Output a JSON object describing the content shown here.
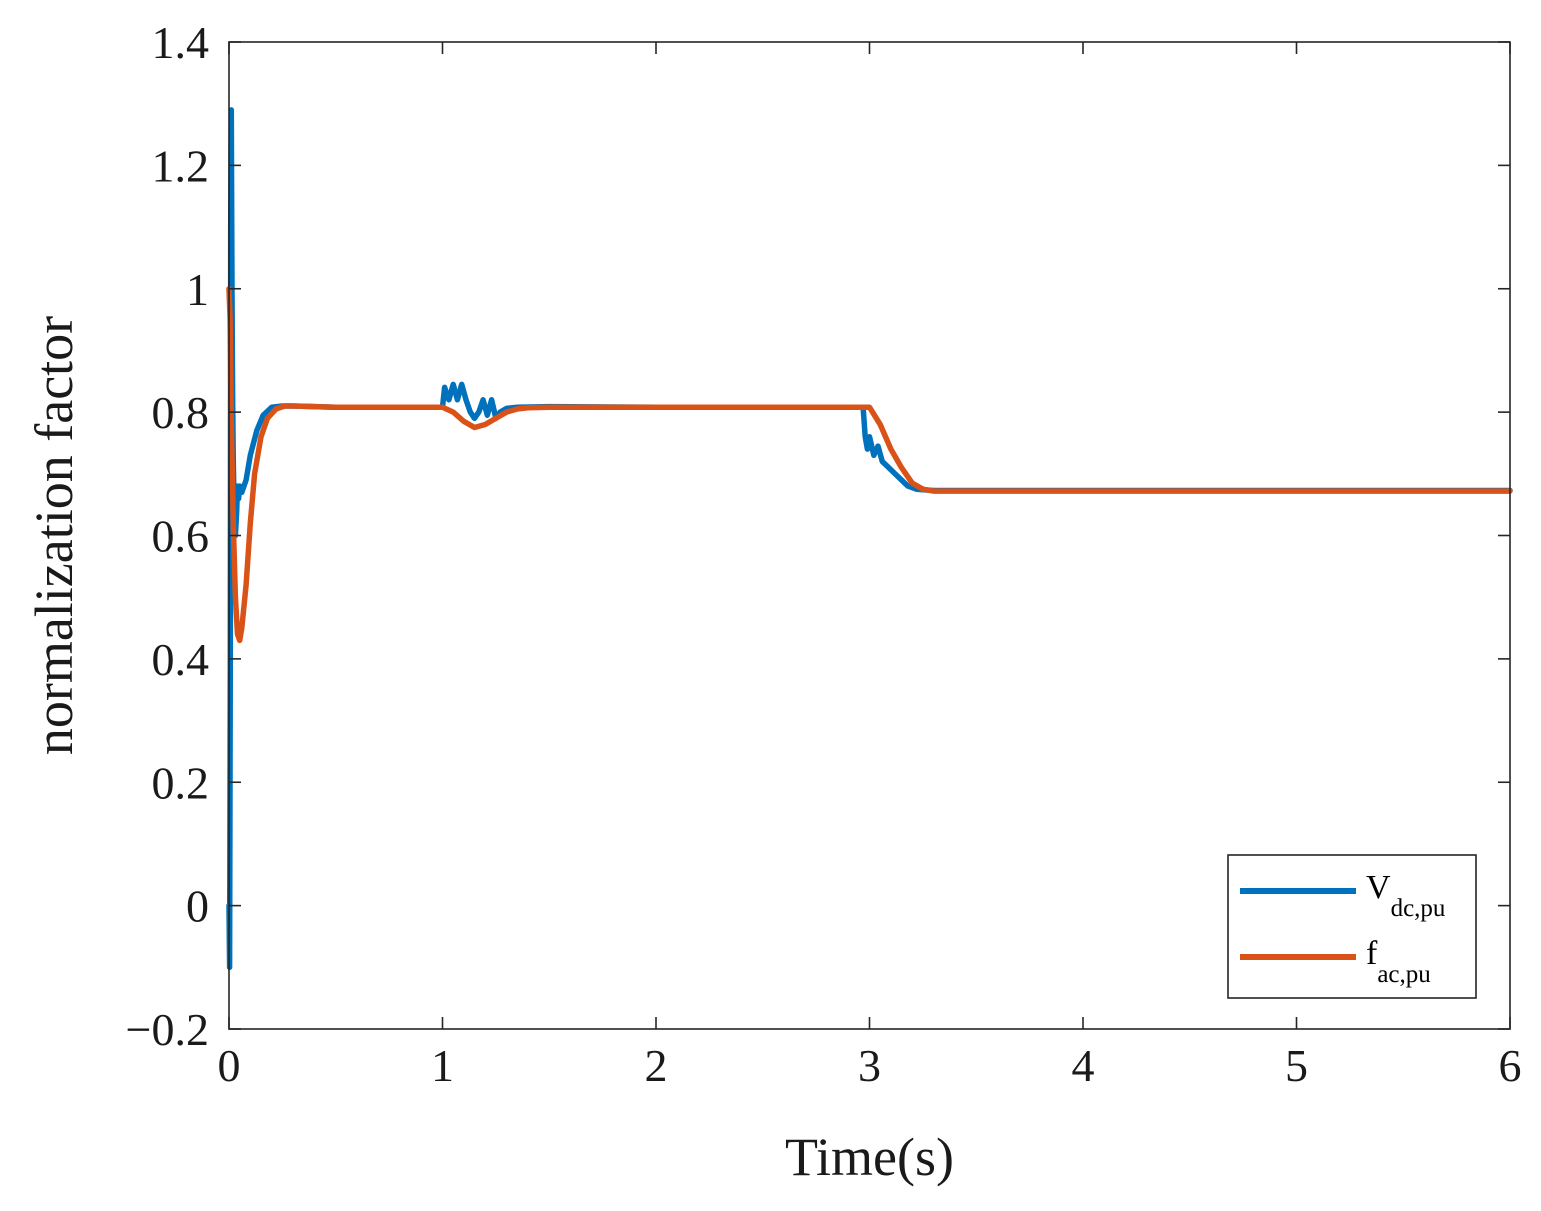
{
  "chart_data": {
    "type": "line",
    "title": "",
    "xlabel": "Time(s)",
    "ylabel": "normalization factor",
    "xlim": [
      0,
      6
    ],
    "ylim": [
      -0.2,
      1.4
    ],
    "xticks": [
      0,
      1,
      2,
      3,
      4,
      5,
      6
    ],
    "xtick_labels": [
      "0",
      "1",
      "2",
      "3",
      "4",
      "5",
      "6"
    ],
    "yticks": [
      -0.2,
      0,
      0.2,
      0.4,
      0.6,
      0.8,
      1,
      1.2,
      1.4
    ],
    "ytick_labels": [
      "−0.2",
      "0",
      "0.2",
      "0.4",
      "0.6",
      "0.8",
      "1",
      "1.2",
      "1.4"
    ],
    "grid": false,
    "legend_position": "bottom-right",
    "series": [
      {
        "name": "V",
        "subscript": "dc,pu",
        "color": "#0072BD",
        "x": [
          0,
          0.003,
          0.006,
          0.008,
          0.011,
          0.014,
          0.017,
          0.02,
          0.024,
          0.03,
          0.036,
          0.04,
          0.045,
          0.05,
          0.06,
          0.08,
          0.1,
          0.13,
          0.16,
          0.2,
          0.25,
          0.3,
          0.5,
          0.8,
          1.0,
          1.01,
          1.03,
          1.05,
          1.07,
          1.09,
          1.11,
          1.13,
          1.15,
          1.17,
          1.19,
          1.21,
          1.23,
          1.25,
          1.27,
          1.3,
          1.35,
          1.5,
          2.0,
          2.5,
          2.97,
          2.98,
          2.99,
          3.0,
          3.02,
          3.04,
          3.06,
          3.09,
          3.12,
          3.15,
          3.18,
          3.22,
          3.3,
          3.5,
          4.0,
          5.0,
          6.0
        ],
        "y": [
          0.0,
          -0.1,
          0.4,
          1.1,
          1.29,
          1.0,
          0.83,
          0.72,
          0.65,
          0.6,
          0.64,
          0.68,
          0.66,
          0.68,
          0.67,
          0.69,
          0.73,
          0.77,
          0.795,
          0.808,
          0.81,
          0.81,
          0.808,
          0.808,
          0.808,
          0.84,
          0.82,
          0.845,
          0.82,
          0.845,
          0.82,
          0.8,
          0.79,
          0.8,
          0.82,
          0.795,
          0.82,
          0.79,
          0.8,
          0.806,
          0.808,
          0.809,
          0.808,
          0.808,
          0.808,
          0.76,
          0.74,
          0.76,
          0.73,
          0.745,
          0.72,
          0.71,
          0.7,
          0.69,
          0.68,
          0.675,
          0.673,
          0.673,
          0.673,
          0.673,
          0.673
        ]
      },
      {
        "name": "f",
        "subscript": "ac,pu",
        "color": "#D95319",
        "x": [
          0,
          0.005,
          0.01,
          0.02,
          0.03,
          0.04,
          0.05,
          0.06,
          0.08,
          0.1,
          0.12,
          0.15,
          0.18,
          0.22,
          0.26,
          0.3,
          0.5,
          1.0,
          1.05,
          1.1,
          1.15,
          1.2,
          1.25,
          1.3,
          1.35,
          1.4,
          1.5,
          2.0,
          2.5,
          3.0,
          3.05,
          3.1,
          3.15,
          3.2,
          3.25,
          3.3,
          4.0,
          5.0,
          6.0
        ],
        "y": [
          1.0,
          0.95,
          0.8,
          0.62,
          0.5,
          0.44,
          0.43,
          0.45,
          0.52,
          0.62,
          0.7,
          0.76,
          0.79,
          0.805,
          0.81,
          0.81,
          0.808,
          0.808,
          0.8,
          0.785,
          0.775,
          0.78,
          0.79,
          0.8,
          0.805,
          0.807,
          0.808,
          0.808,
          0.808,
          0.808,
          0.78,
          0.74,
          0.71,
          0.685,
          0.675,
          0.672,
          0.672,
          0.672,
          0.672
        ]
      }
    ]
  }
}
